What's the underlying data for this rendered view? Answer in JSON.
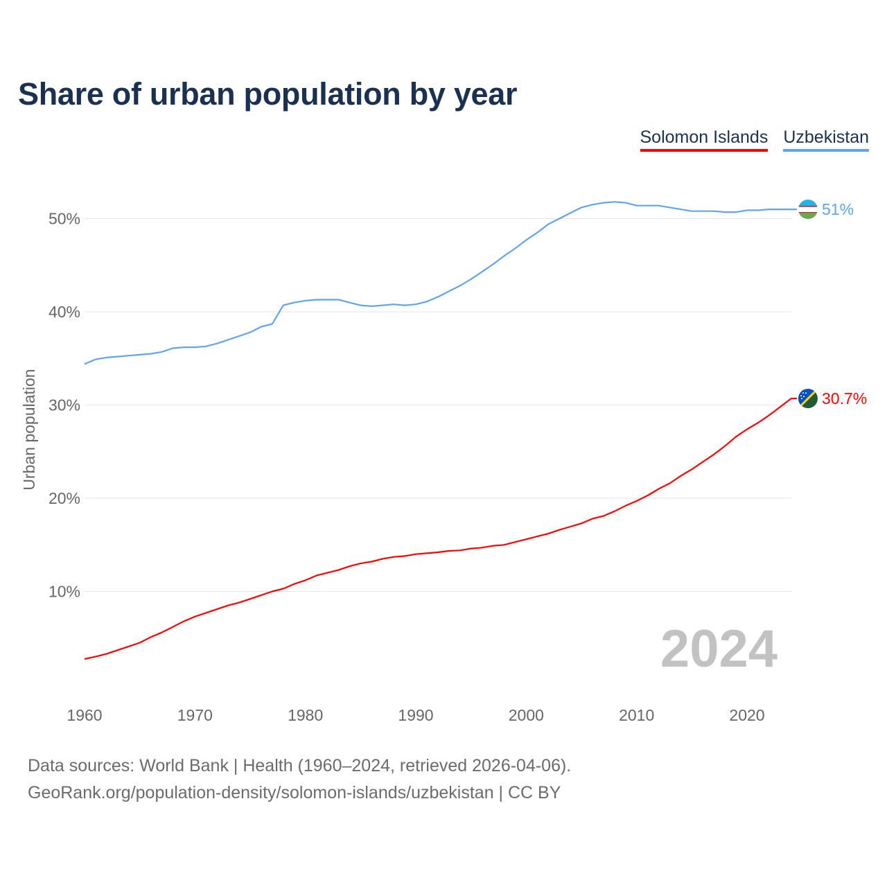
{
  "chart_data": {
    "type": "line",
    "title": "Share of urban population by year",
    "xlabel": "",
    "ylabel": "Urban population",
    "xlim": [
      1960,
      2024
    ],
    "ylim": [
      0,
      55
    ],
    "yticks": [
      10,
      20,
      30,
      40,
      50
    ],
    "ytick_labels": [
      "10%",
      "20%",
      "30%",
      "40%",
      "50%"
    ],
    "xticks": [
      1960,
      1970,
      1980,
      1990,
      2000,
      2010,
      2020
    ],
    "xtick_labels": [
      "1960",
      "1970",
      "1980",
      "1990",
      "2000",
      "2010",
      "2020"
    ],
    "grid": true,
    "legend_position": "top-right",
    "year_watermark": "2024",
    "x": [
      1960,
      1961,
      1962,
      1963,
      1964,
      1965,
      1966,
      1967,
      1968,
      1969,
      1970,
      1971,
      1972,
      1973,
      1974,
      1975,
      1976,
      1977,
      1978,
      1979,
      1980,
      1981,
      1982,
      1983,
      1984,
      1985,
      1986,
      1987,
      1988,
      1989,
      1990,
      1991,
      1992,
      1993,
      1994,
      1995,
      1996,
      1997,
      1998,
      1999,
      2000,
      2001,
      2002,
      2003,
      2004,
      2005,
      2006,
      2007,
      2008,
      2009,
      2010,
      2011,
      2012,
      2013,
      2014,
      2015,
      2016,
      2017,
      2018,
      2019,
      2020,
      2021,
      2022,
      2023,
      2024
    ],
    "series": [
      {
        "name": "Solomon Islands",
        "color": "#ff0000",
        "end_label": "30.7%",
        "flag": "solomon-islands-flag",
        "values": [
          2.75,
          3.0,
          3.3,
          3.7,
          4.1,
          4.5,
          5.1,
          5.6,
          6.2,
          6.8,
          7.3,
          7.7,
          8.1,
          8.5,
          8.8,
          9.2,
          9.6,
          10.0,
          10.3,
          10.8,
          11.2,
          11.7,
          12.0,
          12.3,
          12.7,
          13.0,
          13.2,
          13.5,
          13.7,
          13.8,
          14.0,
          14.1,
          14.2,
          14.35,
          14.4,
          14.6,
          14.7,
          14.9,
          15.0,
          15.3,
          15.6,
          15.9,
          16.2,
          16.6,
          16.95,
          17.3,
          17.8,
          18.1,
          18.6,
          19.2,
          19.7,
          20.3,
          21.0,
          21.6,
          22.4,
          23.1,
          23.9,
          24.7,
          25.6,
          26.6,
          27.4,
          28.1,
          28.9,
          29.8,
          30.7
        ]
      },
      {
        "name": "Uzbekistan",
        "color": "#5fa4ee",
        "end_label": "51%",
        "flag": "uzbekistan-flag",
        "values": [
          34.4,
          34.9,
          35.1,
          35.2,
          35.3,
          35.4,
          35.5,
          35.7,
          36.1,
          36.2,
          36.2,
          36.3,
          36.6,
          37.0,
          37.4,
          37.8,
          38.4,
          38.7,
          40.7,
          41.0,
          41.2,
          41.3,
          41.3,
          41.3,
          41.0,
          40.7,
          40.6,
          40.7,
          40.8,
          40.7,
          40.8,
          41.1,
          41.6,
          42.2,
          42.8,
          43.5,
          44.3,
          45.1,
          46.0,
          46.8,
          47.7,
          48.5,
          49.4,
          50.0,
          50.6,
          51.2,
          51.5,
          51.7,
          51.8,
          51.7,
          51.4,
          51.4,
          51.4,
          51.2,
          51.0,
          50.8,
          50.8,
          50.8,
          50.7,
          50.7,
          50.9,
          50.9,
          51.0,
          51.0,
          51.0
        ]
      }
    ]
  },
  "footer": {
    "line1": "Data sources: World Bank | Health (1960–2024, retrieved 2026-04-06).",
    "line2": "GeoRank.org/population-density/solomon-islands/uzbekistan | CC BY"
  }
}
